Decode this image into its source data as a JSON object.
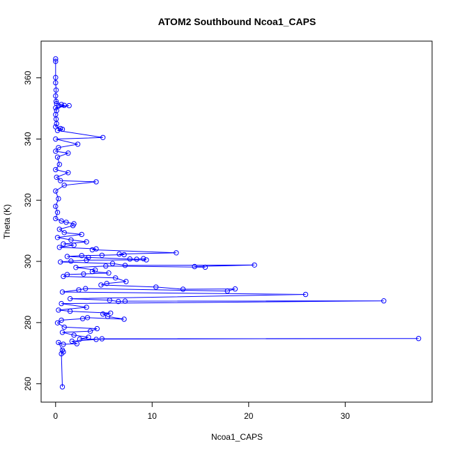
{
  "chart_data": {
    "type": "line",
    "title": "ATOM2 Southbound Ncoa1_CAPS",
    "xlabel": "Ncoa1_CAPS",
    "ylabel": "Theta (K)",
    "xlim": [
      -1.5,
      39
    ],
    "ylim": [
      254,
      372
    ],
    "xticks": [
      0,
      10,
      20,
      30
    ],
    "yticks": [
      260,
      280,
      300,
      320,
      340,
      360
    ],
    "grid": false,
    "legend": "none",
    "series": [
      {
        "color": "#0000ff",
        "marker": "open-circle",
        "points": [
          [
            0.0,
            366.2
          ],
          [
            0.0,
            365.4
          ],
          [
            0.0,
            360.1
          ],
          [
            0.0,
            358.4
          ],
          [
            0.05,
            356.0
          ],
          [
            0.0,
            354.1
          ],
          [
            0.05,
            352.3
          ],
          [
            0.1,
            351.6
          ],
          [
            0.6,
            351.3
          ],
          [
            0.9,
            351.0
          ],
          [
            0.3,
            350.8
          ],
          [
            1.4,
            350.9
          ],
          [
            0.0,
            350.2
          ],
          [
            0.1,
            349.3
          ],
          [
            0.0,
            348.0
          ],
          [
            0.05,
            346.5
          ],
          [
            0.1,
            345.0
          ],
          [
            0.0,
            344.0
          ],
          [
            0.5,
            343.4
          ],
          [
            0.7,
            343.2
          ],
          [
            0.2,
            342.8
          ],
          [
            4.9,
            340.5
          ],
          [
            0.0,
            340.0
          ],
          [
            2.3,
            338.3
          ],
          [
            0.3,
            337.2
          ],
          [
            0.0,
            336.0
          ],
          [
            1.3,
            335.4
          ],
          [
            0.2,
            334.1
          ],
          [
            0.4,
            331.7
          ],
          [
            0.0,
            330.0
          ],
          [
            1.3,
            329.0
          ],
          [
            0.1,
            327.5
          ],
          [
            0.5,
            326.4
          ],
          [
            4.2,
            326.0
          ],
          [
            0.9,
            324.9
          ],
          [
            0.0,
            323.0
          ],
          [
            0.3,
            320.5
          ],
          [
            0.0,
            318.0
          ],
          [
            0.2,
            316.0
          ],
          [
            0.0,
            314.0
          ],
          [
            0.6,
            313.2
          ],
          [
            1.1,
            312.8
          ],
          [
            1.9,
            312.3
          ],
          [
            1.8,
            311.7
          ],
          [
            0.4,
            310.5
          ],
          [
            0.9,
            309.4
          ],
          [
            2.7,
            308.8
          ],
          [
            0.2,
            307.8
          ],
          [
            1.6,
            307.0
          ],
          [
            3.2,
            306.4
          ],
          [
            0.8,
            305.7
          ],
          [
            1.9,
            305.3
          ],
          [
            0.4,
            304.6
          ],
          [
            4.2,
            304.1
          ],
          [
            3.8,
            303.8
          ],
          [
            12.5,
            302.8
          ],
          [
            6.6,
            302.4
          ],
          [
            7.1,
            302.2
          ],
          [
            4.8,
            302.0
          ],
          [
            2.7,
            301.9
          ],
          [
            1.2,
            301.6
          ],
          [
            3.4,
            301.3
          ],
          [
            7.7,
            300.8
          ],
          [
            8.4,
            300.7
          ],
          [
            9.1,
            300.9
          ],
          [
            9.4,
            300.5
          ],
          [
            3.2,
            300.4
          ],
          [
            1.6,
            300.1
          ],
          [
            0.5,
            299.8
          ],
          [
            5.9,
            299.3
          ],
          [
            7.2,
            298.7
          ],
          [
            20.6,
            298.8
          ],
          [
            14.4,
            298.3
          ],
          [
            15.5,
            298.1
          ],
          [
            5.2,
            298.5
          ],
          [
            2.1,
            298.0
          ],
          [
            4.1,
            297.2
          ],
          [
            3.8,
            296.7
          ],
          [
            5.5,
            296.2
          ],
          [
            2.9,
            295.9
          ],
          [
            1.2,
            295.7
          ],
          [
            0.8,
            295.1
          ],
          [
            6.2,
            294.6
          ],
          [
            7.3,
            293.4
          ],
          [
            5.3,
            292.8
          ],
          [
            4.7,
            292.3
          ],
          [
            10.4,
            291.6
          ],
          [
            13.2,
            290.9
          ],
          [
            18.6,
            291.0
          ],
          [
            17.8,
            290.3
          ],
          [
            3.1,
            291.1
          ],
          [
            2.4,
            290.7
          ],
          [
            0.7,
            290.0
          ],
          [
            25.9,
            289.2
          ],
          [
            1.5,
            287.8
          ],
          [
            5.6,
            287.3
          ],
          [
            6.5,
            286.9
          ],
          [
            7.2,
            287.0
          ],
          [
            34.0,
            287.1
          ],
          [
            0.6,
            286.2
          ],
          [
            3.2,
            285.0
          ],
          [
            0.3,
            284.1
          ],
          [
            1.5,
            283.7
          ],
          [
            5.7,
            283.1
          ],
          [
            4.9,
            282.8
          ],
          [
            5.4,
            282.0
          ],
          [
            7.1,
            281.1
          ],
          [
            3.3,
            281.6
          ],
          [
            2.8,
            281.3
          ],
          [
            0.6,
            280.8
          ],
          [
            0.2,
            279.9
          ],
          [
            0.9,
            278.5
          ],
          [
            4.3,
            278.0
          ],
          [
            3.6,
            277.2
          ],
          [
            0.7,
            276.8
          ],
          [
            1.9,
            275.9
          ],
          [
            3.4,
            275.2
          ],
          [
            2.5,
            274.6
          ],
          [
            37.6,
            274.8
          ],
          [
            4.8,
            274.7
          ],
          [
            4.2,
            274.5
          ],
          [
            1.7,
            273.9
          ],
          [
            2.2,
            273.1
          ],
          [
            0.8,
            272.9
          ],
          [
            0.3,
            273.5
          ],
          [
            0.7,
            271.0
          ],
          [
            0.8,
            270.4
          ],
          [
            0.6,
            269.8
          ],
          [
            0.7,
            259.0
          ]
        ]
      }
    ]
  }
}
